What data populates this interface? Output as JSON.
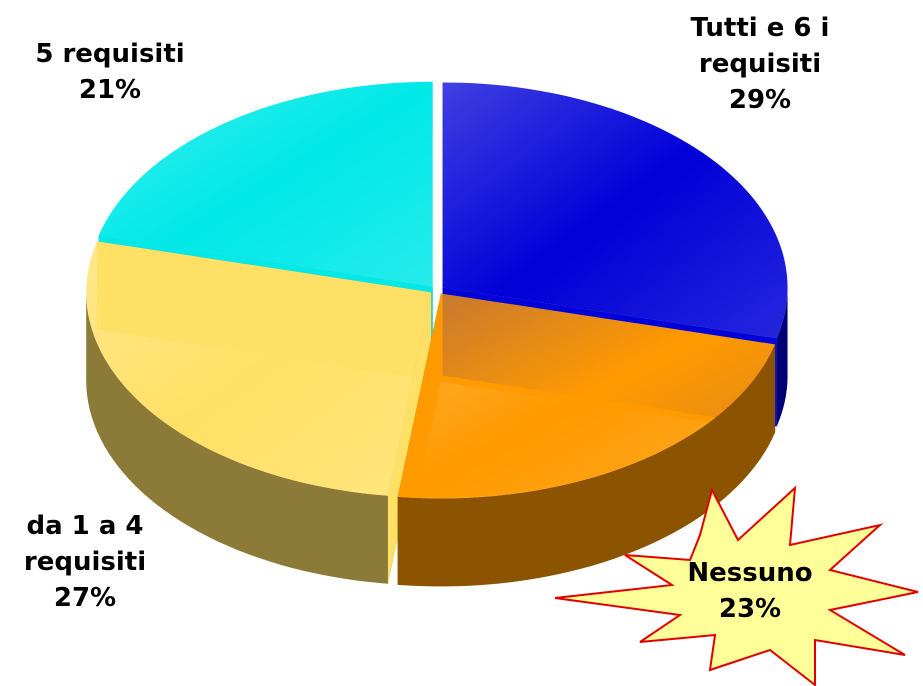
{
  "chart_data": {
    "type": "pie",
    "categories": [
      "Tutti e 6 i requisiti",
      "Nessuno",
      "da 1 a 4 requisiti",
      "5 requisiti"
    ],
    "values": [
      29,
      23,
      27,
      21
    ],
    "value_labels": [
      "29%",
      "23%",
      "27%",
      "21%"
    ],
    "colors": [
      "#0000d8",
      "#ff9a00",
      "#ffe066",
      "#00e8e8"
    ]
  }
}
